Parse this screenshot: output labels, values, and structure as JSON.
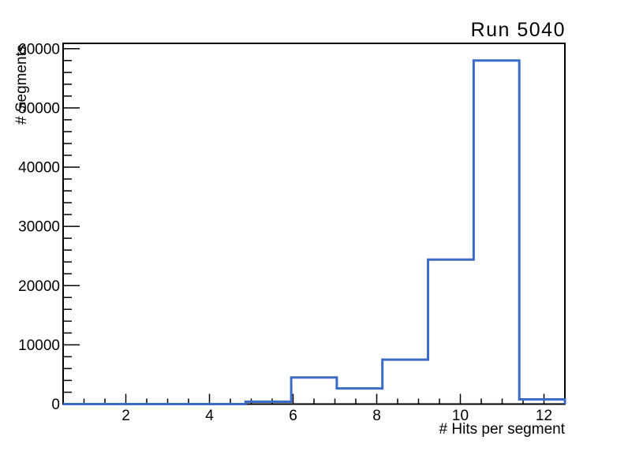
{
  "chart_data": {
    "type": "bar",
    "style": "step-histogram",
    "title": "Run 5040",
    "xlabel": "# Hits per segment",
    "ylabel": "# Segments",
    "xlim": [
      0.5,
      12.5
    ],
    "ylim": [
      0,
      60900
    ],
    "n_bins": 11,
    "bin_edges": [
      0.5,
      1.591,
      2.682,
      3.773,
      4.864,
      5.955,
      7.045,
      8.136,
      9.227,
      10.318,
      11.409,
      12.5
    ],
    "values": [
      0,
      0,
      0,
      0,
      400,
      4500,
      2650,
      7500,
      24400,
      58000,
      800
    ],
    "x_major_ticks": [
      2,
      4,
      6,
      8,
      10,
      12
    ],
    "x_major_tick_labels": [
      "2",
      "4",
      "6",
      "8",
      "10",
      "12"
    ],
    "x_minor_tick_step": 0.5,
    "y_major_ticks": [
      0,
      10000,
      20000,
      30000,
      40000,
      50000,
      60000
    ],
    "y_major_tick_labels": [
      "0",
      "10000",
      "20000",
      "30000",
      "40000",
      "50000",
      "60000"
    ],
    "y_minor_tick_step": 2000,
    "grid": false,
    "legend": null,
    "line_color": "#3a6bc6",
    "axis_color": "#000000",
    "background_color": "#ffffff"
  }
}
